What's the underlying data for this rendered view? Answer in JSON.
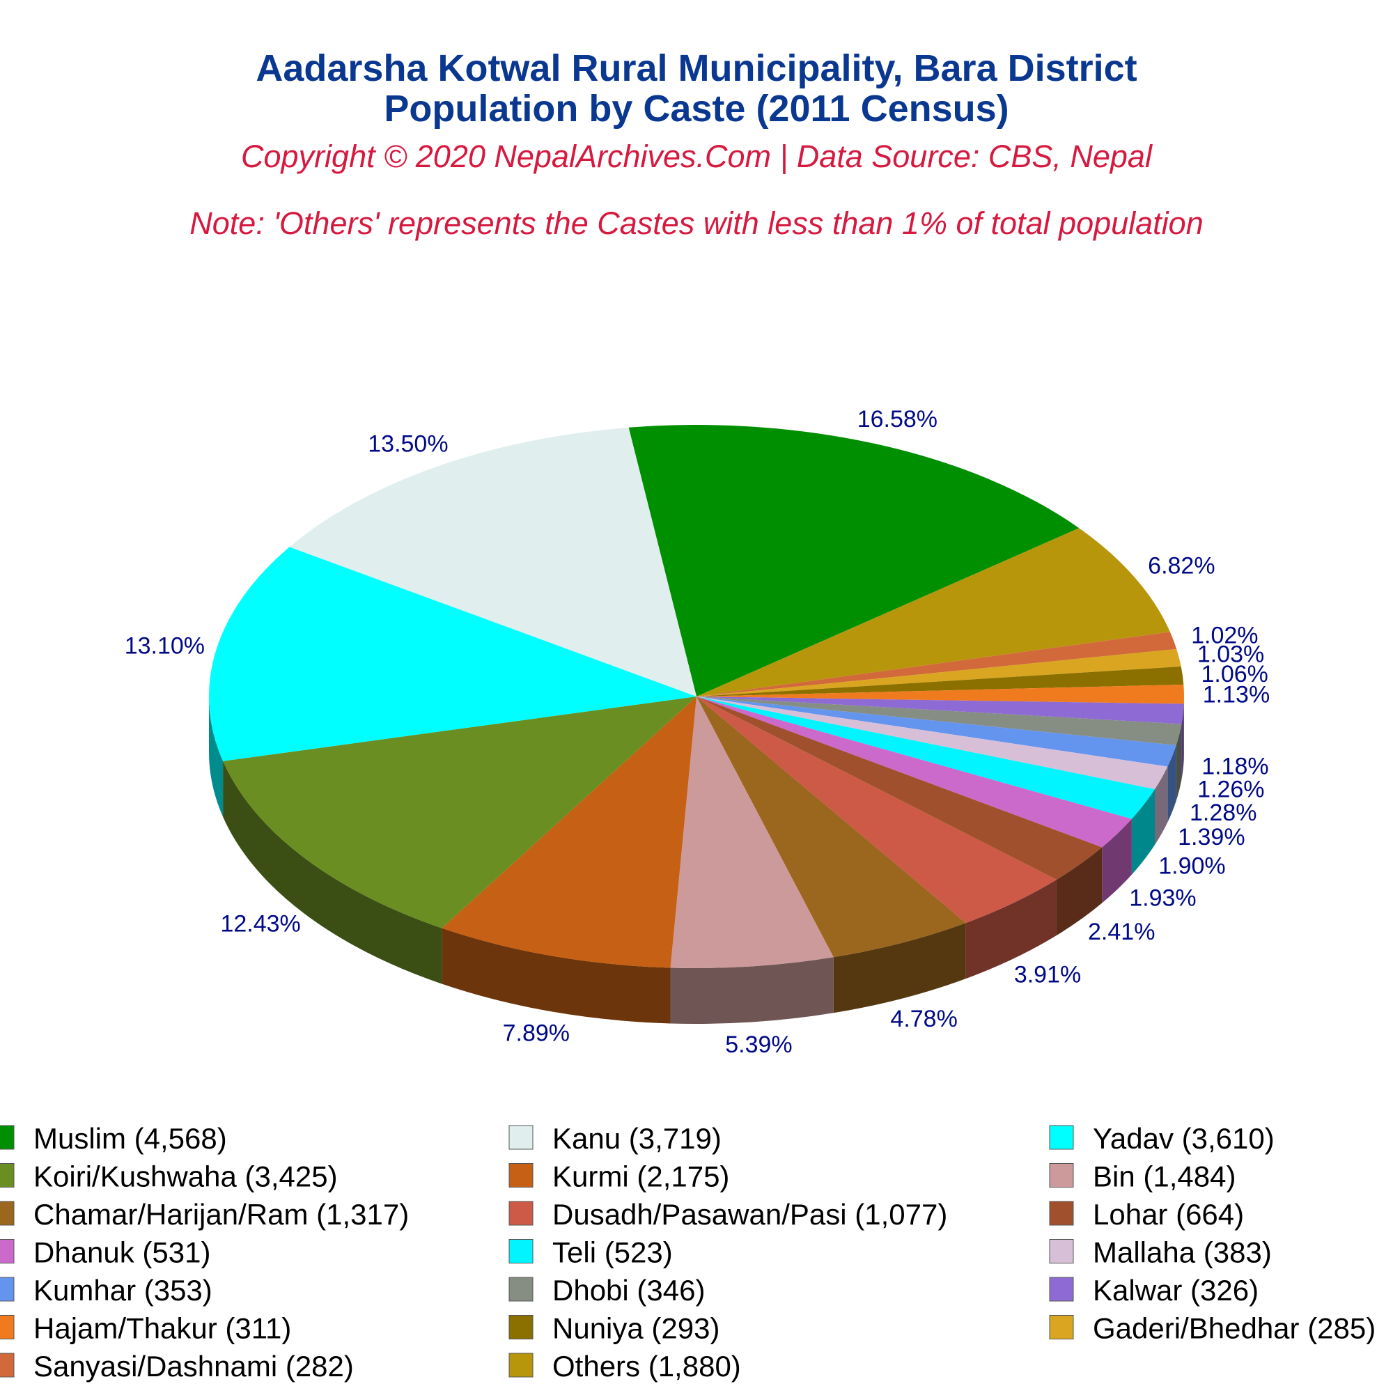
{
  "chart_data": {
    "type": "pie",
    "title": "Aadarsha Kotwal Rural Municipality, Bara District",
    "subtitle": "Population by Caste (2011 Census)",
    "copyright": "Copyright © 2020 NepalArchives.Com | Data Source: CBS, Nepal",
    "note": "Note: 'Others' represents the Castes with less than 1% of total population",
    "legend_placement": "bottom",
    "slices": [
      {
        "name": "Muslim",
        "value": 4568,
        "pct": "16.58%",
        "legend": "Muslim (4,568)",
        "color": "#008f00"
      },
      {
        "name": "Others",
        "value": 1880,
        "pct": "6.82%",
        "legend": "Others (1,880)",
        "color": "#b8960b"
      },
      {
        "name": "Sanyasi/Dashnami",
        "value": 282,
        "pct": "1.02%",
        "legend": "Sanyasi/Dashnami (282)",
        "color": "#d2693a"
      },
      {
        "name": "Gaderi/Bhedhar",
        "value": 285,
        "pct": "1.03%",
        "legend": "Gaderi/Bhedhar (285)",
        "color": "#daa520"
      },
      {
        "name": "Nuniya",
        "value": 293,
        "pct": "1.06%",
        "legend": "Nuniya (293)",
        "color": "#8b7000"
      },
      {
        "name": "Hajam/Thakur",
        "value": 311,
        "pct": "1.13%",
        "legend": "Hajam/Thakur (311)",
        "color": "#f07b1e"
      },
      {
        "name": "Kalwar",
        "value": 326,
        "pct": "1.18%",
        "legend": "Kalwar (326)",
        "color": "#8e6ad4"
      },
      {
        "name": "Dhobi",
        "value": 346,
        "pct": "1.26%",
        "legend": "Dhobi (346)",
        "color": "#868d83"
      },
      {
        "name": "Kumhar",
        "value": 353,
        "pct": "1.28%",
        "legend": "Kumhar (353)",
        "color": "#6395ee"
      },
      {
        "name": "Mallaha",
        "value": 383,
        "pct": "1.39%",
        "legend": "Mallaha (383)",
        "color": "#d8bfd8"
      },
      {
        "name": "Teli",
        "value": 523,
        "pct": "1.90%",
        "legend": "Teli (523)",
        "color": "#00f5ff"
      },
      {
        "name": "Dhanuk",
        "value": 531,
        "pct": "1.93%",
        "legend": "Dhanuk (531)",
        "color": "#cc6acc"
      },
      {
        "name": "Lohar",
        "value": 664,
        "pct": "2.41%",
        "legend": "Lohar (664)",
        "color": "#a0502c"
      },
      {
        "name": "Dusadh/Pasawan/Pasi",
        "value": 1077,
        "pct": "3.91%",
        "legend": "Dusadh/Pasawan/Pasi (1,077)",
        "color": "#cd5a47"
      },
      {
        "name": "Chamar/Harijan/Ram",
        "value": 1317,
        "pct": "4.78%",
        "legend": "Chamar/Harijan/Ram (1,317)",
        "color": "#9b661d"
      },
      {
        "name": "Bin",
        "value": 1484,
        "pct": "5.39%",
        "legend": "Bin (1,484)",
        "color": "#cc9a9a"
      },
      {
        "name": "Kurmi",
        "value": 2175,
        "pct": "7.89%",
        "legend": "Kurmi (2,175)",
        "color": "#c66014"
      },
      {
        "name": "Koiri/Kushwaha",
        "value": 3425,
        "pct": "12.43%",
        "legend": "Koiri/Kushwaha (3,425)",
        "color": "#6b8e22"
      },
      {
        "name": "Yadav",
        "value": 3610,
        "pct": "13.10%",
        "legend": "Yadav (3,610)",
        "color": "#00ffff"
      },
      {
        "name": "Kanu",
        "value": 3719,
        "pct": "13.50%",
        "legend": "Kanu (3,719)",
        "color": "#e0eeee"
      }
    ],
    "legend_order": [
      "Muslim",
      "Kanu",
      "Yadav",
      "Koiri/Kushwaha",
      "Kurmi",
      "Bin",
      "Chamar/Harijan/Ram",
      "Dusadh/Pasawan/Pasi",
      "Lohar",
      "Dhanuk",
      "Teli",
      "Mallaha",
      "Kumhar",
      "Dhobi",
      "Kalwar",
      "Hajam/Thakur",
      "Nuniya",
      "Gaderi/Bhedhar",
      "Sanyasi/Dashnami",
      "Others"
    ]
  }
}
